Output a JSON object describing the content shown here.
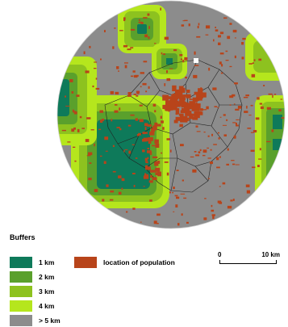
{
  "legend": {
    "title": "Buffers",
    "buffers": [
      {
        "label": "1 km",
        "color": "#0e7a5a"
      },
      {
        "label": "2 km",
        "color": "#5aa02c"
      },
      {
        "label": "3 km",
        "color": "#8dc21f"
      },
      {
        "label": "4 km",
        "color": "#b5e61d"
      },
      {
        "label": "> 5 km",
        "color": "#8c8c8c"
      }
    ],
    "population": {
      "label": "location of population",
      "color": "#b8441a"
    }
  },
  "scalebar": {
    "start_label": "0",
    "end_label": "10 km"
  }
}
